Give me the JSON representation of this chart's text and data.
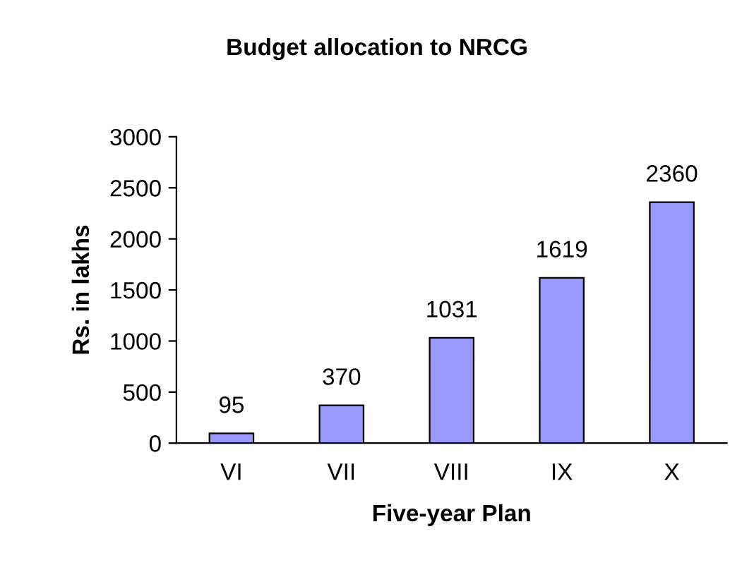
{
  "chart_data": {
    "type": "bar",
    "title": "Budget allocation to NRCG",
    "xlabel": "Five-year Plan",
    "ylabel": "Rs. in lakhs",
    "categories": [
      "VI",
      "VII",
      "VIII",
      "IX",
      "X"
    ],
    "values": [
      95,
      370,
      1031,
      1619,
      2360
    ],
    "color": "#9999ff",
    "ylim": [
      0,
      3000
    ],
    "yticks": [
      0,
      500,
      1000,
      1500,
      2000,
      2500,
      3000
    ],
    "grid": false,
    "data_labels": true
  }
}
